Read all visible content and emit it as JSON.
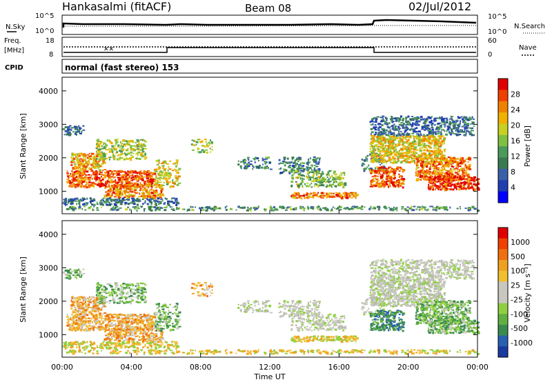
{
  "header": {
    "station": "Hankasalmi (fitACF)",
    "beam": "Beam 08",
    "date": "02/Jul/2012"
  },
  "top_panels": {
    "nsky_label": "N.Sky",
    "nsearch_label": "N.Search",
    "noise_ticks": [
      "10^5",
      "10^0"
    ],
    "freq_label_1": "Freq.",
    "freq_label_2": "[MHz]",
    "freq_ticks": [
      "18",
      "8"
    ],
    "nave_ticks": [
      "60",
      "0"
    ],
    "nave_label": "Nave",
    "cpid_label": "CPID",
    "cpid_text": "normal (fast stereo) 153"
  },
  "axes": {
    "ylabel": "Slant Range [km]",
    "yticks": [
      "4000",
      "3000",
      "2000",
      "1000"
    ],
    "xlabel": "Time UT",
    "xticks": [
      "00:00",
      "04:00",
      "08:00",
      "12:00",
      "16:00",
      "20:00",
      "00:00"
    ]
  },
  "power_colorbar": {
    "label": "Power [dB]",
    "ticks": [
      "28",
      "24",
      "20",
      "16",
      "12",
      "8",
      "4"
    ],
    "colors": [
      "#0000ff",
      "#1f3fb0",
      "#3a5fa8",
      "#3a7a50",
      "#4a9a5a",
      "#7fc040",
      "#c8d020",
      "#f0b000",
      "#f08000",
      "#f04000",
      "#e00000"
    ]
  },
  "velocity_colorbar": {
    "label": "Velocity [m s⁻¹]",
    "ticks": [
      "1000",
      "500",
      "100",
      "25",
      "-25",
      "-100",
      "-500",
      "-1000"
    ],
    "colors": [
      "#1a3aa0",
      "#2860b0",
      "#3a8a50",
      "#5fb040",
      "#90d040",
      "#c8c8c0",
      "#c8c8c0",
      "#f0c030",
      "#f0a020",
      "#f07010",
      "#f04000",
      "#e00000"
    ]
  },
  "chart_data": {
    "type": "heatmap",
    "title": "Hankasalmi (fitACF)",
    "xlabel": "Time UT",
    "ylabel": "Slant Range [km]",
    "x_range": [
      "00:00",
      "00:00"
    ],
    "ylim": [
      200,
      4500
    ],
    "panels": [
      {
        "name": "Power [dB]",
        "cbar_range": [
          0,
          30
        ]
      },
      {
        "name": "Velocity [m s⁻¹]",
        "cbar_range": [
          -1000,
          1000
        ]
      }
    ]
  }
}
